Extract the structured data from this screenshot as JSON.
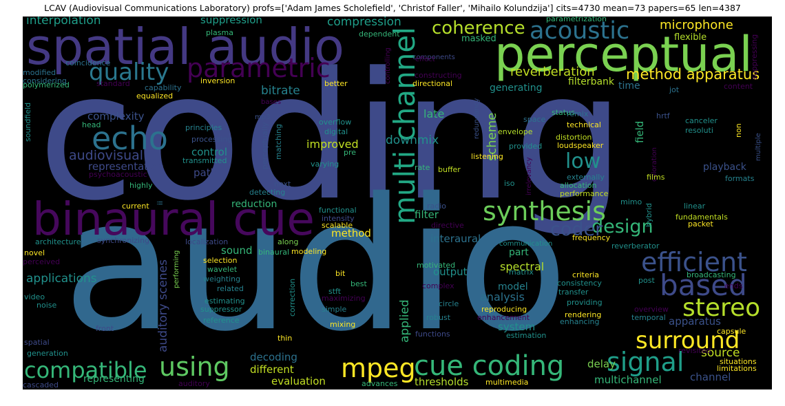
{
  "title": "LCAV (Audiovisual Communications Laboratory) profs=['Adam James Scholefield', 'Christof Faller', 'Mihailo Kolundzija'] cits=4730 mean=73 papers=65 len=4387",
  "words": {
    "coding": "coding",
    "audio": "audio",
    "spatial_audio": "spatial audio",
    "perceptual": "perceptual",
    "binaural_cue": "binaural cue",
    "parametric": "parametric",
    "quality": "quality",
    "echo": "echo",
    "acoustic": "acoustic",
    "coherence": "coherence",
    "multi_channel": "multi channel",
    "synthesis": "synthesis",
    "efficient": "efficient",
    "based": "based",
    "stereo": "stereo",
    "surround": "surround",
    "signal": "signal",
    "cue_coding": "cue coding",
    "mpeg": "mpeg",
    "using": "using",
    "compatible": "compatible",
    "low": "low",
    "design": "design",
    "coder": "coder",
    "method_apparatus": "method apparatus",
    "reverberation": "reverberation",
    "microphone": "microphone",
    "interpolation": "interpolation",
    "suppression": "suppression",
    "compression": "compression",
    "bitrate": "bitrate",
    "complexity": "complexity",
    "audiovisual": "audiovisual",
    "representation": "representation",
    "control": "control",
    "path": "path",
    "reduction": "reduction",
    "applications": "applications",
    "auditory_scenes": "auditory scenes",
    "sound": "sound",
    "method": "method",
    "improved": "improved",
    "downmix": "downmix",
    "late": "late",
    "scheme": "scheme",
    "filter": "filter",
    "interaural": "interaural",
    "spectral": "spectral",
    "part": "part",
    "output": "output",
    "model": "model",
    "analysis": "analysis",
    "applied": "applied",
    "system": "system",
    "apparatus": "apparatus",
    "source": "source",
    "channel": "channel",
    "decoding": "decoding",
    "different": "different",
    "evaluation": "evaluation",
    "thresholds": "thresholds",
    "delay": "delay",
    "multichannel": "multichannel",
    "representing": "representing",
    "playback": "playback",
    "generating": "generating",
    "filterbank": "filterbank",
    "time": "time",
    "field": "field",
    "masked": "masked",
    "flexible": "flexible",
    "plasma": "plasma",
    "dependent": "dependent",
    "parametrization": "parametrization",
    "suppressing": "suppressing",
    "content": "content",
    "components": "components",
    "effect": "effect",
    "controlling": "controlling",
    "constructing": "constructing",
    "directional": "directional",
    "coincidence": "coincidence",
    "modified": "modified",
    "considering": "considering",
    "polymerized": "polymerized",
    "standard": "standard",
    "capability": "capability",
    "inversion": "inversion",
    "better": "better",
    "equalized": "equalized",
    "soundfield": "soundfield",
    "bases": "bases",
    "jot": "jot",
    "hrtf": "hrtf",
    "status": "status",
    "head": "head",
    "mp3": "mp3",
    "principles": "principles",
    "processing": "processing",
    "transmitted": "transmitted",
    "perceptually": "perceptually",
    "matching": "matching",
    "overflow": "overflow",
    "digital": "digital",
    "pre": "pre",
    "varying": "varying",
    "redundancy": "redundancy",
    "remix": "remix",
    "technical": "technical",
    "space": "space",
    "envelope": "envelope",
    "distortion": "distortion",
    "provided": "provided",
    "loudspeaker": "loudspeaker",
    "canceler": "canceler",
    "resoluti": "resoluti",
    "non": "non",
    "multiple": "multiple",
    "coloration": "coloration",
    "psychoacoustic": "psychoacoustic",
    "highly": "highly",
    "rate": "rate",
    "buffer": "buffer",
    "listening": "listening",
    "irrelevancy": "irrelevancy",
    "externally": "externally",
    "allocation": "allocation",
    "performance": "performance",
    "films": "films",
    "formats": "formats",
    "iso": "iso",
    "current": "current",
    "ii": "ii",
    "detecting": "detecting",
    "next": "next",
    "radio": "radio",
    "functional": "functional",
    "intensity": "intensity",
    "scalable": "scalable",
    "directive": "directive",
    "mimo": "mimo",
    "hybrid": "hybrid",
    "linear": "linear",
    "fundamentals": "fundamentals",
    "packet": "packet",
    "architecture": "architecture",
    "synchronizing": "synchronizing",
    "localization": "localization",
    "along": "along",
    "communication": "communication",
    "frequency": "frequency",
    "reverberator": "reverberator",
    "novel": "novel",
    "perceived": "perceived",
    "binaural": "binaural",
    "modeling": "modeling",
    "selection": "selection",
    "wavelet": "wavelet",
    "weighting": "weighting",
    "related": "related",
    "performing": "performing",
    "motivated": "motivated",
    "bit": "bit",
    "best": "best",
    "criteria": "criteria",
    "consistency": "consistency",
    "transfer": "transfer",
    "post": "post",
    "broadcasting": "broadcasting",
    "ends": "ends",
    "matrix": "matrix",
    "complex": "complex",
    "correction": "correction",
    "video": "video",
    "noise": "noise",
    "estimating": "estimating",
    "suppressor": "suppressor",
    "maximizing": "maximizing",
    "stft": "stft",
    "circle": "circle",
    "providing": "providing",
    "reproducing": "reproducing",
    "overview": "overview",
    "temporal": "temporal",
    "reference": "reference",
    "simple": "simple",
    "robust": "robust",
    "enhancement": "enhancement",
    "enhancing": "enhancing",
    "front": "front",
    "mixing": "mixing",
    "rendering": "rendering",
    "capsule": "capsule",
    "spatial": "spatial",
    "generation": "generation",
    "thin": "thin",
    "functions": "functions",
    "estimation": "estimation",
    "revisited": "revisited",
    "situations": "situations",
    "limitations": "limitations",
    "cascaded": "cascaded",
    "auditory": "auditory",
    "advances": "advances",
    "multimedia": "multimedia"
  }
}
